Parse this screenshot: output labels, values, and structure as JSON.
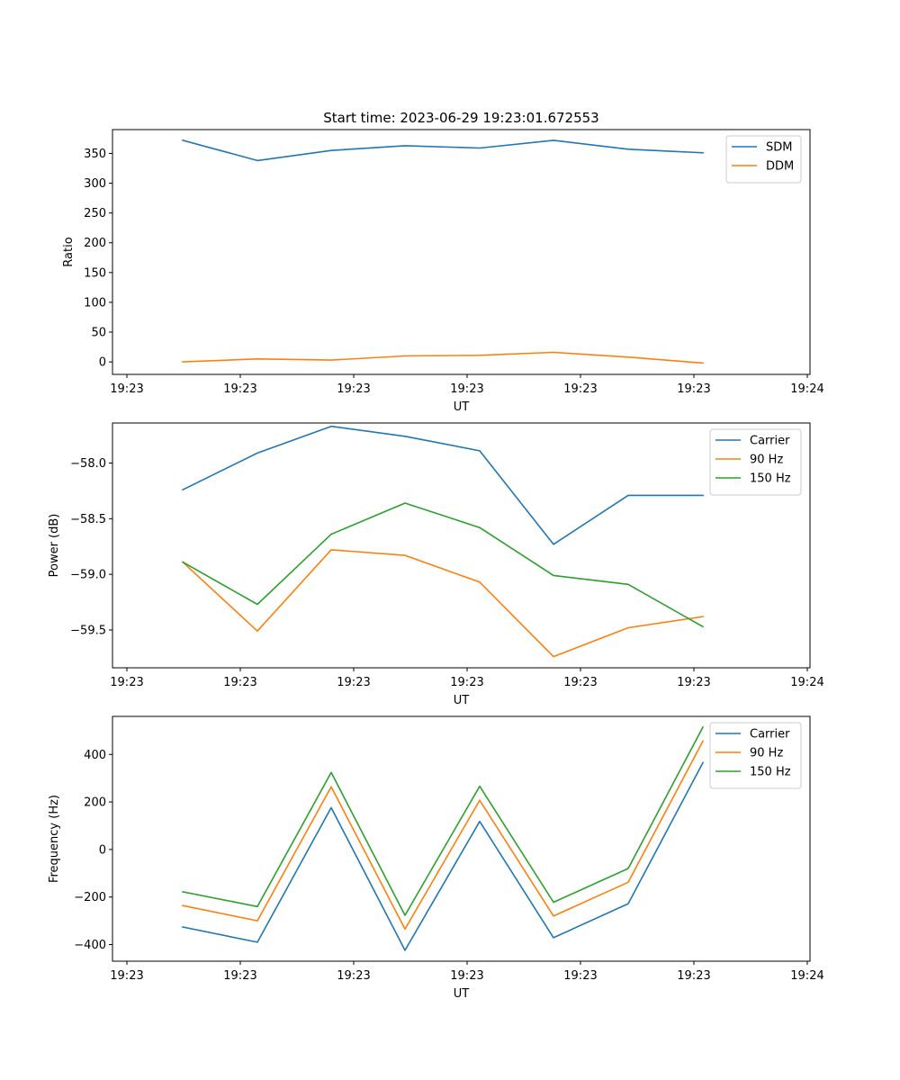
{
  "figure": {
    "title": "Start time: 2023-06-29 19:23:01.672553"
  },
  "chart_data": [
    {
      "type": "line",
      "xlabel": "UT",
      "ylabel": "Ratio",
      "x_tick_labels": [
        "19:23",
        "19:23",
        "19:23",
        "19:23",
        "19:23",
        "19:23",
        "19:24"
      ],
      "y_ticks": [
        0,
        50,
        100,
        150,
        200,
        250,
        300,
        350
      ],
      "y_tick_labels": [
        "0",
        "50",
        "100",
        "150",
        "200",
        "250",
        "300",
        "350"
      ],
      "ylim": [
        -21,
        390
      ],
      "legend": "top-right",
      "series": [
        {
          "name": "SDM",
          "color": "#1f77b4",
          "values": [
            372,
            338,
            355,
            363,
            359,
            372,
            357,
            351
          ]
        },
        {
          "name": "DDM",
          "color": "#ff7f0e",
          "values": [
            0,
            5,
            3,
            10,
            11,
            16,
            8,
            -2
          ]
        }
      ]
    },
    {
      "type": "line",
      "xlabel": "UT",
      "ylabel": "Power (dB)",
      "x_tick_labels": [
        "19:23",
        "19:23",
        "19:23",
        "19:23",
        "19:23",
        "19:23",
        "19:24"
      ],
      "y_ticks": [
        -59.5,
        -59.0,
        -58.5,
        -58.0
      ],
      "y_tick_labels": [
        "−59.5",
        "−59.0",
        "−58.5",
        "−58.0"
      ],
      "ylim": [
        -59.84,
        -57.64
      ],
      "legend": "top-right",
      "series": [
        {
          "name": "Carrier",
          "color": "#1f77b4",
          "values": [
            -58.24,
            -57.91,
            -57.67,
            -57.76,
            -57.89,
            -58.73,
            -58.29,
            -58.29
          ]
        },
        {
          "name": "90 Hz",
          "color": "#ff7f0e",
          "values": [
            -58.89,
            -59.51,
            -58.78,
            -58.83,
            -59.07,
            -59.74,
            -59.48,
            -59.38
          ]
        },
        {
          "name": "150 Hz",
          "color": "#2ca02c",
          "values": [
            -58.89,
            -59.27,
            -58.64,
            -58.36,
            -58.58,
            -59.01,
            -59.09,
            -59.47
          ]
        }
      ]
    },
    {
      "type": "line",
      "xlabel": "UT",
      "ylabel": "Frequency (Hz)",
      "x_tick_labels": [
        "19:23",
        "19:23",
        "19:23",
        "19:23",
        "19:23",
        "19:23",
        "19:24"
      ],
      "y_ticks": [
        -400,
        -200,
        0,
        200,
        400
      ],
      "y_tick_labels": [
        "−400",
        "−200",
        "0",
        "200",
        "400"
      ],
      "ylim": [
        -470,
        560
      ],
      "legend": "top-right",
      "series": [
        {
          "name": "Carrier",
          "color": "#1f77b4",
          "values": [
            -326,
            -390,
            176,
            -424,
            118,
            -371,
            -228,
            365
          ]
        },
        {
          "name": "90 Hz",
          "color": "#ff7f0e",
          "values": [
            -236,
            -300,
            264,
            -335,
            207,
            -280,
            -138,
            456
          ]
        },
        {
          "name": "150 Hz",
          "color": "#2ca02c",
          "values": [
            -178,
            -240,
            324,
            -277,
            266,
            -222,
            -80,
            515
          ]
        }
      ]
    }
  ]
}
